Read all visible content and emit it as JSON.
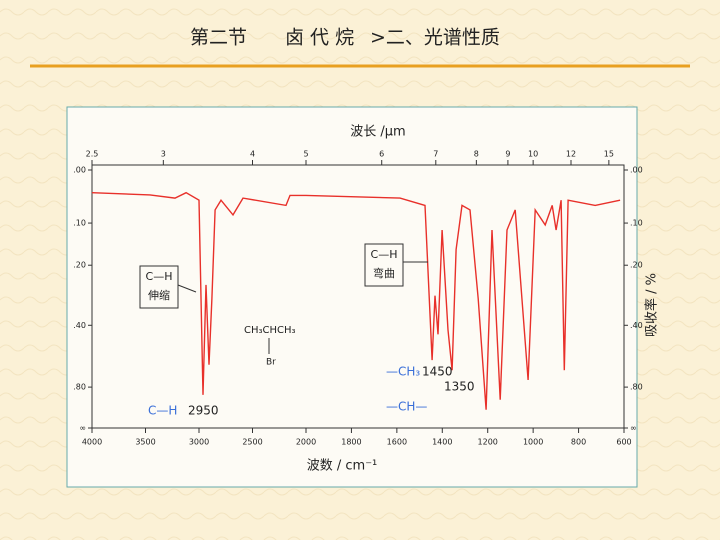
{
  "header": {
    "section": "第二节",
    "topic": "卤 代 烷",
    "subtitle": ">二、光谱性质"
  },
  "chart_data": {
    "type": "line",
    "x_label": "波数 / cm⁻¹",
    "x2_label": "波长 /μm",
    "y_label": "吸收率 / %",
    "x": [
      4000,
      3458,
      3224,
      3121,
      3000,
      2963,
      2935,
      2907,
      2879,
      2850,
      2794,
      2682,
      2589,
      2187,
      2150,
      2000,
      1586,
      1476,
      1445,
      1432,
      1419,
      1401,
      1375,
      1357,
      1339,
      1313,
      1278,
      1242,
      1207,
      1181,
      1145,
      1115,
      1079,
      1022,
      991,
      947,
      916,
      899,
      877,
      863,
      846,
      727,
      617
    ],
    "values": [
      0.04,
      0.044,
      0.05,
      0.04,
      0.054,
      0.89,
      0.256,
      0.61,
      0.3,
      0.073,
      0.054,
      0.083,
      0.05,
      0.064,
      0.045,
      0.045,
      0.05,
      0.064,
      0.58,
      0.29,
      0.44,
      0.115,
      0.42,
      0.65,
      0.16,
      0.064,
      0.073,
      0.3,
      1.15,
      0.115,
      0.96,
      0.115,
      0.073,
      0.73,
      0.073,
      0.104,
      0.064,
      0.115,
      0.054,
      0.65,
      0.054,
      0.064,
      0.054
    ],
    "color": "#e8302a",
    "xlim": [
      4000,
      600
    ],
    "xbreak": 2000,
    "xticks": [
      4000,
      3500,
      3000,
      2500,
      2000,
      1800,
      1600,
      1400,
      1200,
      1000,
      800,
      600
    ],
    "x2ticks": [
      2.5,
      3,
      4,
      5,
      6,
      7,
      8,
      9,
      10,
      12,
      15
    ],
    "yscale": "transmittance",
    "yticks": [
      {
        "value": 0,
        "label": ".00"
      },
      {
        "value": 0.1,
        "label": ".10"
      },
      {
        "value": 0.2,
        "label": ".20"
      },
      {
        "value": 0.4,
        "label": ".40"
      },
      {
        "value": 0.8,
        "label": ".80"
      },
      {
        "value": null,
        "label": "∞"
      }
    ],
    "annotations": [
      {
        "text": "C—H"
      },
      {
        "text": "伸缩"
      },
      {
        "text": "C—H"
      },
      {
        "text": "弯曲"
      },
      {
        "text": "CH₃CHCH₃"
      },
      {
        "text": "Br"
      },
      {
        "text": "C—H"
      },
      {
        "text": "2950"
      },
      {
        "text": "—CH₃"
      },
      {
        "text": "1450"
      },
      {
        "text": "1350"
      },
      {
        "text": "—CH—"
      }
    ]
  }
}
